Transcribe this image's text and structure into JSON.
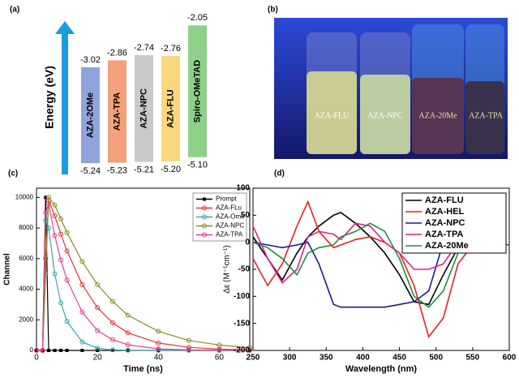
{
  "chart_data": [
    {
      "type": "energy-levels",
      "label": "(a)",
      "axis_label": "Energy (eV)",
      "categories": [
        "AZA-2OMe",
        "AZA-TPA",
        "AZA-NPC",
        "AZA-FLU",
        "Spiro-OMeTAD"
      ],
      "lumo": [
        -3.02,
        -2.86,
        -2.74,
        -2.76,
        -2.05
      ],
      "homo": [
        -5.24,
        -5.23,
        -5.21,
        -5.2,
        -5.1
      ],
      "value_labels": {
        "lumo": [
          "-3.02",
          "-2.86",
          "-2.74",
          "-2.76",
          "-2.05"
        ],
        "homo": [
          "-5.24",
          "-5.23",
          "-5.21",
          "-5.20",
          "-5.10"
        ]
      },
      "colors": [
        "#8fa3dc",
        "#f5a07c",
        "#c9c9c9",
        "#f9d77e",
        "#8fd08a"
      ],
      "ylim": [
        -5.5,
        -1.8
      ]
    },
    {
      "type": "line",
      "label": "(c)",
      "x_label": "Time (ns)",
      "y_label": "Channel",
      "markers": true,
      "legend": "upper right",
      "x": [
        0,
        2,
        3,
        4,
        6,
        8,
        10,
        15,
        20,
        25,
        30,
        40,
        50,
        60,
        70
      ],
      "series": [
        {
          "name": "Prompt",
          "color": "#000000",
          "marker": "square",
          "values": [
            0,
            0,
            10000,
            0,
            0,
            0,
            0,
            0,
            0,
            0,
            0,
            0,
            0,
            0,
            0
          ]
        },
        {
          "name": "AZA-FLu",
          "color": "#e8303a",
          "marker": "circle",
          "values": [
            0,
            0,
            6000,
            9800,
            8800,
            7600,
            6500,
            4300,
            2800,
            1800,
            1150,
            480,
            200,
            80,
            30
          ]
        },
        {
          "name": "AZA-Ome",
          "color": "#3aa6a6",
          "marker": "circle",
          "values": [
            0,
            0,
            8500,
            8000,
            5000,
            3100,
            1900,
            550,
            150,
            40,
            10,
            0,
            0,
            0,
            0
          ]
        },
        {
          "name": "AZA-NPC",
          "color": "#8a8a20",
          "marker": "circle",
          "values": [
            0,
            0,
            5000,
            10000,
            9500,
            8600,
            7700,
            5800,
            4300,
            3200,
            2300,
            1250,
            650,
            350,
            180
          ]
        },
        {
          "name": "AZA-TPA",
          "color": "#e8408a",
          "marker": "circle",
          "values": [
            0,
            0,
            9000,
            9600,
            7500,
            5900,
            4600,
            2500,
            1300,
            700,
            370,
            100,
            30,
            10,
            0
          ]
        }
      ],
      "xlim": [
        0,
        70
      ],
      "xticks": [
        0,
        20,
        40,
        60
      ],
      "ylim": [
        0,
        10600
      ],
      "yticks": [
        0,
        2000,
        4000,
        6000,
        8000,
        10000
      ]
    },
    {
      "type": "line",
      "label": "(d)",
      "x_label": "Wavelength (nm)",
      "y_label": "Δε (M⁻¹cm⁻¹)",
      "markers": false,
      "legend": "upper right",
      "x": [
        250,
        270,
        290,
        310,
        325,
        340,
        360,
        370,
        390,
        410,
        430,
        450,
        470,
        490,
        510,
        530,
        550,
        570,
        600
      ],
      "series": [
        {
          "name": "AZA-FLU",
          "color": "#000000",
          "values": [
            10,
            -30,
            -70,
            -20,
            10,
            30,
            50,
            55,
            35,
            10,
            -20,
            -60,
            -110,
            -115,
            -60,
            -10,
            0,
            0,
            -5
          ]
        },
        {
          "name": "AZA-HEL",
          "color": "#e82020",
          "values": [
            -30,
            -80,
            -40,
            30,
            75,
            20,
            -10,
            -5,
            5,
            10,
            0,
            -20,
            -80,
            -175,
            -140,
            -40,
            -5,
            0,
            -5
          ]
        },
        {
          "name": "AZA-NPC",
          "color": "#1a1a8c",
          "values": [
            0,
            -5,
            -10,
            -5,
            0,
            -40,
            -115,
            -120,
            -120,
            -120,
            -120,
            -115,
            -110,
            -90,
            0,
            10,
            0,
            0,
            -5
          ]
        },
        {
          "name": "AZA-TPA",
          "color": "#e8208c",
          "values": [
            30,
            -30,
            -75,
            -50,
            10,
            20,
            15,
            5,
            35,
            30,
            0,
            -20,
            -50,
            -50,
            -40,
            0,
            0,
            0,
            -5
          ]
        },
        {
          "name": "AZA-20Me",
          "color": "#1e8c3c",
          "values": [
            0,
            -10,
            -30,
            -60,
            -20,
            -10,
            -5,
            10,
            20,
            35,
            20,
            -30,
            -100,
            -120,
            -90,
            -20,
            0,
            0,
            -5
          ]
        }
      ],
      "xlim": [
        250,
        600
      ],
      "xticks": [
        250,
        300,
        350,
        400,
        450,
        500,
        550,
        600
      ],
      "ylim": [
        -200,
        100
      ],
      "yticks": [
        -200,
        -150,
        -100,
        -50,
        0,
        50,
        100
      ]
    }
  ],
  "photo": {
    "label": "(b)",
    "vials": [
      "AZA-FLU",
      "AZA-NPC",
      "AZA-20Me",
      "AZA-TPA"
    ]
  }
}
